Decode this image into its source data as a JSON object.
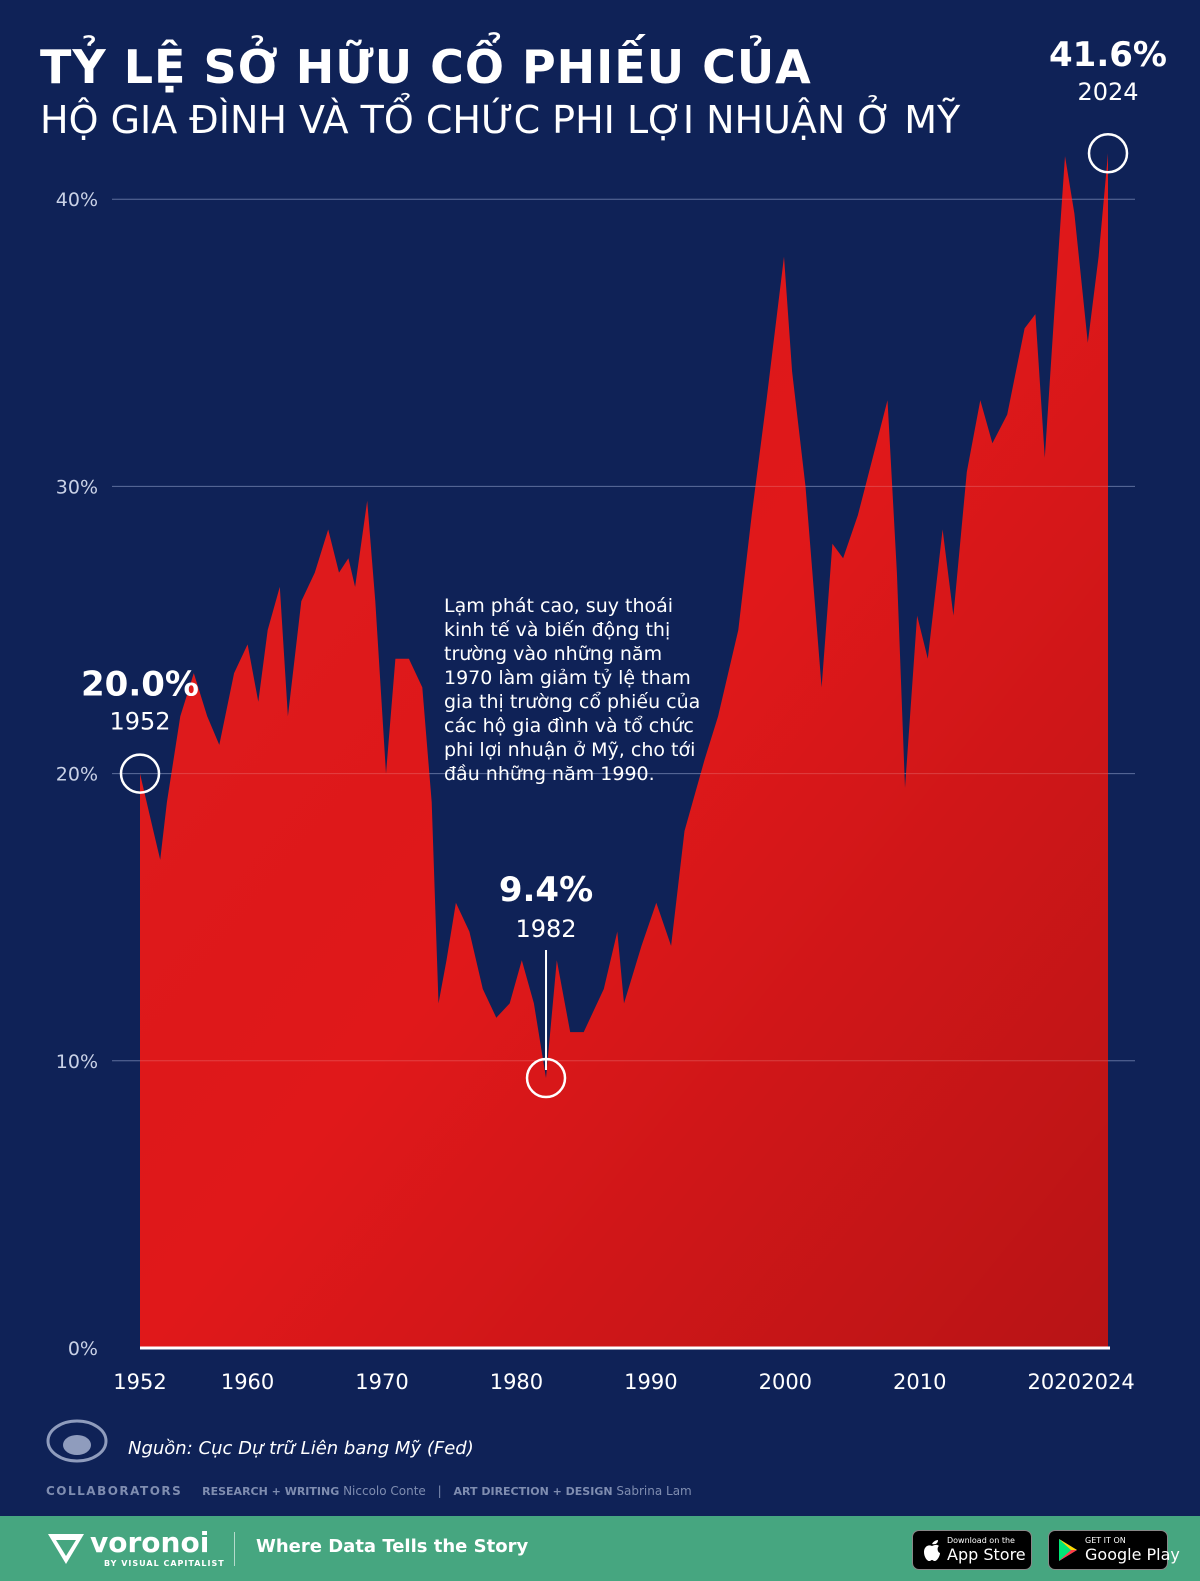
{
  "title": {
    "line1": "TỶ LỆ SỞ HỮU CỔ PHIẾU CỦA",
    "line2": "HỘ GIA ĐÌNH VÀ TỔ CHỨC PHI LỢI NHUẬN Ở MỸ"
  },
  "annotation": "Lạm phát cao, suy thoái kinh tế và biến động thị trường vào những năm 1970 làm giảm tỷ lệ tham gia thị trường cổ phiếu của các hộ gia đình và tổ chức phi lợi nhuận ở Mỹ, cho tới đầu những năm 1990.",
  "source": "Nguồn: Cục Dự trữ Liên bang Mỹ (Fed)",
  "credits": {
    "collaborators": "COLLABORATORS",
    "research_role": "RESEARCH + WRITING",
    "research_name": "Niccolo Conte",
    "art_role": "ART DIRECTION + DESIGN",
    "art_name": "Sabrina Lam"
  },
  "footer": {
    "brand": "voronoi",
    "brand_sub": "BY VISUAL CAPITALIST",
    "tagline": "Where Data Tells the Story",
    "app_store_small": "Download on the",
    "app_store_big": "App Store",
    "google_small": "GET IT ON",
    "google_big": "Google Play"
  },
  "colors": {
    "background": "#0f2257",
    "area": "#e0181a",
    "footer": "#46a680"
  },
  "chart_data": {
    "type": "area",
    "title": "TỶ LỆ SỞ HỮU CỔ PHIẾU CỦA HỘ GIA ĐÌNH VÀ TỔ CHỨC PHI LỢI NHUẬN Ở MỸ",
    "xlabel": "",
    "ylabel": "",
    "xlim": [
      1952,
      2024
    ],
    "ylim": [
      0,
      42
    ],
    "grid": true,
    "x_ticks": [
      "1952",
      "1960",
      "1970",
      "1980",
      "1990",
      "2000",
      "2010",
      "2020",
      "2024"
    ],
    "y_ticks": [
      "0%",
      "10%",
      "20%",
      "30%",
      "40%"
    ],
    "x": [
      1952.0,
      1953.0,
      1953.5,
      1954.0,
      1955.0,
      1956.0,
      1957.0,
      1957.9,
      1959.0,
      1960.0,
      1960.8,
      1961.5,
      1962.4,
      1963.0,
      1964.0,
      1965.0,
      1966.0,
      1966.8,
      1967.5,
      1968.0,
      1968.9,
      1969.5,
      1970.3,
      1971.0,
      1972.0,
      1973.0,
      1973.7,
      1974.2,
      1974.8,
      1975.5,
      1976.5,
      1977.5,
      1978.5,
      1979.5,
      1980.4,
      1981.3,
      1982.2,
      1983.0,
      1984.0,
      1985.0,
      1986.5,
      1987.5,
      1988.0,
      1989.3,
      1990.4,
      1991.5,
      1992.5,
      1994.0,
      1995.0,
      1996.5,
      1997.5,
      1998.6,
      1999.9,
      2000.5,
      2001.5,
      2002.7,
      2003.5,
      2004.3,
      2005.4,
      2006.5,
      2007.6,
      2008.3,
      2008.9,
      2009.8,
      2010.6,
      2011.7,
      2012.5,
      2013.5,
      2014.5,
      2015.4,
      2016.5,
      2017.8,
      2018.6,
      2019.3,
      2020.0,
      2020.8,
      2021.5,
      2022.5,
      2023.3,
      2024.0
    ],
    "values": [
      20.0,
      18.0,
      17.0,
      19.0,
      22.0,
      23.5,
      22.0,
      21.0,
      23.5,
      24.5,
      22.5,
      25.0,
      26.5,
      22.0,
      26.0,
      27.0,
      28.5,
      27.0,
      27.5,
      26.5,
      29.5,
      26.0,
      20.0,
      24.0,
      24.0,
      23.0,
      19.0,
      12.0,
      13.5,
      15.5,
      14.5,
      12.5,
      11.5,
      12.0,
      13.5,
      12.0,
      9.4,
      13.5,
      11.0,
      11.0,
      12.5,
      14.5,
      12.0,
      14.0,
      15.5,
      14.0,
      18.0,
      20.5,
      22.0,
      25.0,
      29.0,
      33.0,
      38.0,
      34.0,
      30.0,
      23.0,
      28.0,
      27.5,
      29.0,
      31.0,
      33.0,
      27.0,
      19.5,
      25.5,
      24.0,
      28.5,
      25.5,
      30.5,
      33.0,
      31.5,
      32.5,
      35.5,
      36.0,
      31.0,
      36.0,
      41.5,
      39.5,
      35.0,
      38.0,
      41.6
    ],
    "annotations": [
      {
        "value_label": "20.0%",
        "year_label": "1952",
        "x": 1952,
        "y": 20.0
      },
      {
        "value_label": "9.4%",
        "year_label": "1982",
        "x": 1982.2,
        "y": 9.4
      },
      {
        "value_label": "41.6%",
        "year_label": "2024",
        "x": 2024,
        "y": 41.6
      }
    ]
  }
}
